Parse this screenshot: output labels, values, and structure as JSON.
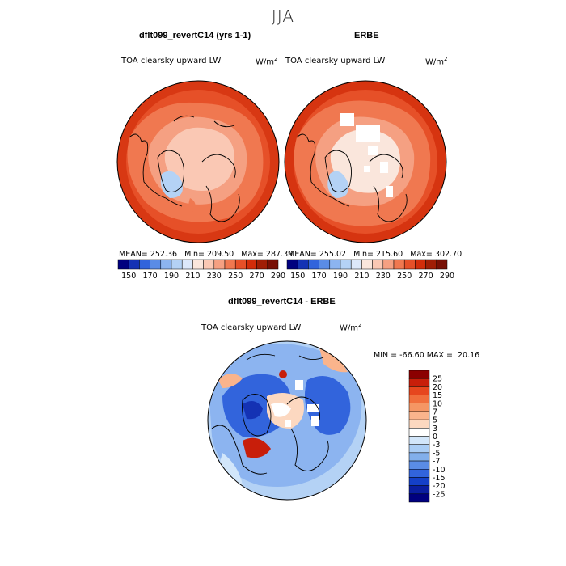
{
  "page_title": "JJA",
  "chart_data": [
    {
      "type": "heatmap",
      "projection": "north-polar-stereographic",
      "title": "dflt099_revertC14 (yrs 1-1)",
      "variable": "TOA clearsky upward LW",
      "units_base": "W/m",
      "units_exp": "2",
      "stats": {
        "mean_label": "MEAN=",
        "mean": "252.36",
        "min_label": "Min=",
        "min": "209.50",
        "max_label": "Max=",
        "max": "287.39"
      },
      "colorbar_levels": [
        "150",
        "170",
        "190",
        "210",
        "230",
        "250",
        "270",
        "290"
      ],
      "colors": [
        "#00007f",
        "#1432b4",
        "#3264dc",
        "#5a8ce6",
        "#8cb4f0",
        "#b4d2f5",
        "#dce8fa",
        "#fae6dc",
        "#fac8b4",
        "#f5a082",
        "#f07850",
        "#e65028",
        "#d22d0a",
        "#a01e05",
        "#781005"
      ]
    },
    {
      "type": "heatmap",
      "projection": "north-polar-stereographic",
      "title": "ERBE",
      "variable": "TOA clearsky upward LW",
      "units_base": "W/m",
      "units_exp": "2",
      "stats": {
        "mean_label": "MEAN=",
        "mean": "255.02",
        "min_label": "Min=",
        "min": "215.60",
        "max_label": "Max=",
        "max": "302.70"
      },
      "colorbar_levels": [
        "150",
        "170",
        "190",
        "210",
        "230",
        "250",
        "270",
        "290"
      ],
      "colors": [
        "#00007f",
        "#1432b4",
        "#3264dc",
        "#5a8ce6",
        "#8cb4f0",
        "#b4d2f5",
        "#dce8fa",
        "#fae6dc",
        "#fac8b4",
        "#f5a082",
        "#f07850",
        "#e65028",
        "#d22d0a",
        "#a01e05",
        "#781005"
      ]
    },
    {
      "type": "heatmap",
      "projection": "north-polar-stereographic",
      "title": "dflt099_revertC14 - ERBE",
      "variable": "TOA clearsky upward LW",
      "units_base": "W/m",
      "units_exp": "2",
      "stats": {
        "min_label": "MIN =",
        "min": "-66.60",
        "max_label": "MAX =",
        "max": "20.16"
      },
      "colorbar_levels": [
        "25",
        "20",
        "15",
        "10",
        "7",
        "5",
        "3",
        "0",
        "-3",
        "-5",
        "-7",
        "-10",
        "-15",
        "-20",
        "-25"
      ],
      "colors": [
        "#8b0000",
        "#c81e0a",
        "#e6461e",
        "#f06e3c",
        "#f59664",
        "#fab48c",
        "#fcd8c0",
        "#ffffff",
        "#d2e6fa",
        "#aacdf5",
        "#82afeb",
        "#5a8ce6",
        "#3264dc",
        "#1440c8",
        "#0a1ea0",
        "#00007f"
      ]
    }
  ]
}
